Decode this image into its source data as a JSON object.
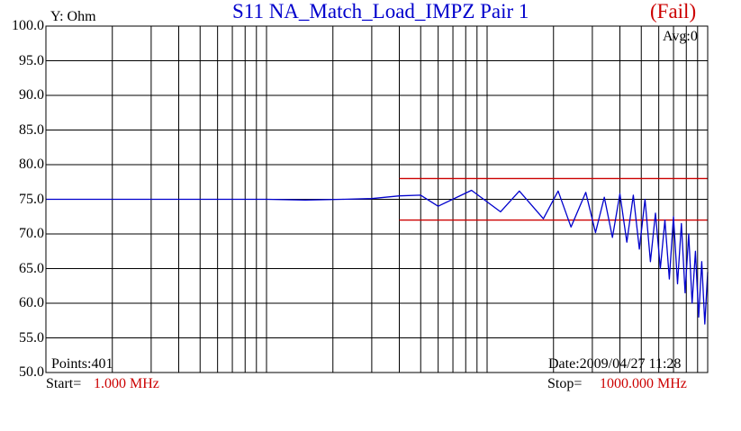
{
  "chart_data": {
    "type": "line",
    "title": "S11  NA_Match_Load_IMPZ Pair 1",
    "status": "(Fail)",
    "ylabel": "Y: Ohm",
    "ylim": [
      50.0,
      100.0
    ],
    "yticks": [
      "100.0",
      "95.0",
      "90.0",
      "85.0",
      "80.0",
      "75.0",
      "70.0",
      "65.0",
      "60.0",
      "55.0",
      "50.0"
    ],
    "xscale": "log",
    "xlim": [
      1.0,
      1000.0
    ],
    "grid": true,
    "avg_label": "Avg:0",
    "points_label": "Points:401",
    "date_label": "Date:2009/04/27 11:28",
    "start_label": "Start=",
    "start_value": "1.000 MHz",
    "stop_label": "Stop=",
    "stop_value": "1000.000 MHz",
    "limits": [
      {
        "x": [
          40.0,
          1000.0
        ],
        "y": 78.0
      },
      {
        "x": [
          40.0,
          1000.0
        ],
        "y": 72.0
      }
    ],
    "series": [
      {
        "color": "#0000cc",
        "x": [
          1.0,
          10.0,
          15.0,
          22.0,
          30.0,
          40.0,
          50.0,
          60.0,
          85.0,
          115.0,
          140.0,
          180.0,
          210.0,
          240.0,
          280.0,
          310.0,
          340.0,
          370.0,
          400.0,
          430.0,
          460.0,
          490.0,
          520.0,
          550.0,
          580.0,
          610.0,
          640.0,
          670.0,
          700.0,
          730.0,
          760.0,
          790.0,
          820.0,
          850.0,
          880.0,
          910.0,
          940.0,
          970.0,
          1000.0
        ],
        "y": [
          75.0,
          75.0,
          74.9,
          75.0,
          75.1,
          75.5,
          75.6,
          74.0,
          76.3,
          73.2,
          76.2,
          72.2,
          76.2,
          71.0,
          76.0,
          70.2,
          75.3,
          69.5,
          75.8,
          68.8,
          75.6,
          67.8,
          75.0,
          66.0,
          73.0,
          65.0,
          72.0,
          63.5,
          72.5,
          62.8,
          71.5,
          61.5,
          70.0,
          60.0,
          67.5,
          58.0,
          66.0,
          57.0,
          64.5
        ]
      }
    ]
  }
}
